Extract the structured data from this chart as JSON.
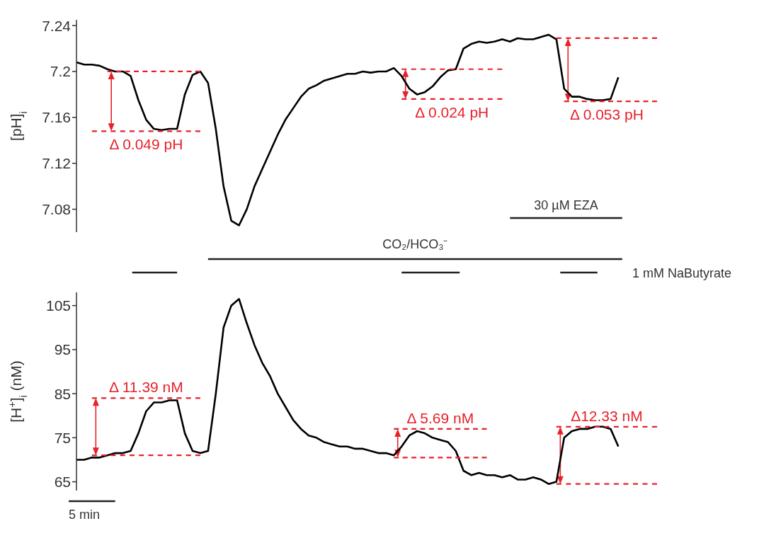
{
  "chart_data": [
    {
      "type": "line",
      "ylabel": "[pH]$_{i}$",
      "categories": [
        null,
        null,
        null,
        null,
        null,
        null,
        null,
        null,
        null,
        null,
        null,
        null,
        null,
        null,
        null,
        null,
        null,
        null,
        null,
        null,
        null,
        null,
        null,
        null,
        null,
        null,
        null,
        null,
        null,
        null,
        null,
        null,
        null,
        null,
        null,
        null,
        null,
        null,
        null,
        null,
        null,
        null,
        null,
        null,
        null,
        null,
        null,
        null,
        null,
        null,
        null,
        null,
        null,
        null,
        null,
        null,
        null,
        null,
        null,
        null,
        null,
        null,
        null,
        null,
        null,
        null,
        null,
        null,
        null,
        null,
        null,
        null,
        null,
        null,
        null,
        null
      ],
      "ylim": [
        7.06,
        7.245
      ],
      "yticks": [
        7.08,
        7.12,
        7.16,
        7.2,
        7.24
      ],
      "tick_labels": "y",
      "series": [
        {
          "color": "#000000",
          "values": [
            7.208,
            7.206,
            7.206,
            7.205,
            7.202,
            7.2,
            7.2,
            7.196,
            7.175,
            7.158,
            7.15,
            7.149,
            7.15,
            7.15,
            7.18,
            7.197,
            7.2,
            7.19,
            7.15,
            7.1,
            7.07,
            7.066,
            7.08,
            7.1,
            7.115,
            7.13,
            7.145,
            7.158,
            7.168,
            7.178,
            7.185,
            7.188,
            7.192,
            7.194,
            7.196,
            7.198,
            7.198,
            7.2,
            7.199,
            7.2,
            7.2,
            7.203,
            7.196,
            7.185,
            7.18,
            7.182,
            7.187,
            7.195,
            7.201,
            7.202,
            7.22,
            7.224,
            7.226,
            7.225,
            7.226,
            7.228,
            7.226,
            7.229,
            7.228,
            7.228,
            7.23,
            7.232,
            7.228,
            7.185,
            7.178,
            7.178,
            7.176,
            7.175,
            7.175,
            7.176,
            7.195,
            null,
            null,
            null,
            null,
            null
          ]
        },
        {
          "color": "#e8202a",
          "line_style": "dashed",
          "values": [
            null,
            null,
            null,
            null,
            7.2,
            7.2,
            7.2,
            7.2,
            7.2,
            7.2,
            7.2,
            7.2,
            7.2,
            7.2,
            7.2,
            7.2,
            7.2,
            null,
            null,
            null,
            null,
            null,
            null,
            null,
            null,
            null,
            null,
            null,
            null,
            null,
            null,
            null,
            null,
            null,
            null,
            null,
            null,
            null,
            null,
            null,
            null,
            null,
            null,
            null,
            null,
            null,
            null,
            null,
            null,
            null,
            null,
            null,
            null,
            null,
            null,
            null,
            null,
            null,
            null,
            null,
            null,
            null,
            null,
            null,
            null,
            null,
            null,
            null,
            null,
            null,
            null,
            null,
            null,
            null,
            null,
            null
          ]
        },
        {
          "color": "#e8202a",
          "line_style": "dashed",
          "values": [
            null,
            null,
            7.148,
            7.148,
            7.148,
            7.148,
            7.148,
            7.148,
            7.148,
            7.148,
            7.148,
            7.148,
            7.148,
            7.148,
            7.148,
            7.148,
            7.148,
            null,
            null,
            null,
            null,
            null,
            null,
            null,
            null,
            null,
            null,
            null,
            null,
            null,
            null,
            null,
            null,
            null,
            null,
            null,
            null,
            null,
            null,
            null,
            null,
            null,
            null,
            null,
            null,
            null,
            null,
            null,
            null,
            null,
            null,
            null,
            null,
            null,
            null,
            null,
            null,
            null,
            null,
            null,
            null,
            null,
            null,
            null,
            null,
            null,
            null,
            null,
            null,
            null,
            null,
            null,
            null,
            null,
            null,
            null
          ]
        },
        {
          "color": "#e8202a",
          "line_style": "dashed",
          "values": [
            null,
            null,
            null,
            null,
            null,
            null,
            null,
            null,
            null,
            null,
            null,
            null,
            null,
            null,
            null,
            null,
            null,
            null,
            null,
            null,
            null,
            null,
            null,
            null,
            null,
            null,
            null,
            null,
            null,
            null,
            null,
            null,
            null,
            null,
            null,
            null,
            null,
            null,
            null,
            null,
            null,
            null,
            7.202,
            7.202,
            7.202,
            7.202,
            7.202,
            7.202,
            7.202,
            7.202,
            7.202,
            7.202,
            7.202,
            7.202,
            7.202,
            7.202,
            null,
            null,
            null,
            null,
            null,
            null,
            null,
            null,
            null,
            null,
            null,
            null,
            null,
            null,
            null,
            null,
            null,
            null,
            null,
            null
          ]
        },
        {
          "color": "#e8202a",
          "line_style": "dashed",
          "values": [
            null,
            null,
            null,
            null,
            null,
            null,
            null,
            null,
            null,
            null,
            null,
            null,
            null,
            null,
            null,
            null,
            null,
            null,
            null,
            null,
            null,
            null,
            null,
            null,
            null,
            null,
            null,
            null,
            null,
            null,
            null,
            null,
            null,
            null,
            null,
            null,
            null,
            null,
            null,
            null,
            null,
            null,
            7.176,
            7.176,
            7.176,
            7.176,
            7.176,
            7.176,
            7.176,
            7.176,
            7.176,
            7.176,
            7.176,
            7.176,
            7.176,
            7.176,
            null,
            null,
            null,
            null,
            null,
            null,
            null,
            null,
            null,
            null,
            null,
            null,
            null,
            null,
            null,
            null,
            null,
            null,
            null,
            null
          ]
        },
        {
          "color": "#e8202a",
          "line_style": "dashed",
          "values": [
            null,
            null,
            null,
            null,
            null,
            null,
            null,
            null,
            null,
            null,
            null,
            null,
            null,
            null,
            null,
            null,
            null,
            null,
            null,
            null,
            null,
            null,
            null,
            null,
            null,
            null,
            null,
            null,
            null,
            null,
            null,
            null,
            null,
            null,
            null,
            null,
            null,
            null,
            null,
            null,
            null,
            null,
            null,
            null,
            null,
            null,
            null,
            null,
            null,
            null,
            null,
            null,
            null,
            null,
            null,
            null,
            null,
            null,
            null,
            null,
            null,
            null,
            7.229,
            7.229,
            7.229,
            7.229,
            7.229,
            7.229,
            7.229,
            7.229,
            7.229,
            7.229,
            7.229,
            7.229,
            7.229,
            7.229
          ]
        },
        {
          "color": "#e8202a",
          "line_style": "dashed",
          "values": [
            null,
            null,
            null,
            null,
            null,
            null,
            null,
            null,
            null,
            null,
            null,
            null,
            null,
            null,
            null,
            null,
            null,
            null,
            null,
            null,
            null,
            null,
            null,
            null,
            null,
            null,
            null,
            null,
            null,
            null,
            null,
            null,
            null,
            null,
            null,
            null,
            null,
            null,
            null,
            null,
            null,
            null,
            null,
            null,
            null,
            null,
            null,
            null,
            null,
            null,
            null,
            null,
            null,
            null,
            null,
            null,
            null,
            null,
            null,
            null,
            null,
            null,
            null,
            7.174,
            7.174,
            7.174,
            7.174,
            7.174,
            7.174,
            7.174,
            7.174,
            7.174,
            7.174,
            7.174,
            7.174,
            7.174
          ]
        }
      ],
      "annotations": [
        "Δ 0.049 pH",
        "Δ 0.024 pH",
        "Δ 0.053 pH",
        "30 µM EZA",
        "CO₂/HCO₃⁻",
        "1 mM NaButyrate"
      ]
    },
    {
      "type": "line",
      "ylabel": "[H$^{+}$]$_{i}$ (nM)",
      "categories": [
        null,
        null,
        null,
        null,
        null,
        null,
        null,
        null,
        null,
        null,
        null,
        null,
        null,
        null,
        null,
        null,
        null,
        null,
        null,
        null,
        null,
        null,
        null,
        null,
        null,
        null,
        null,
        null,
        null,
        null,
        null,
        null,
        null,
        null,
        null,
        null,
        null,
        null,
        null,
        null,
        null,
        null,
        null,
        null,
        null,
        null,
        null,
        null,
        null,
        null,
        null,
        null,
        null,
        null,
        null,
        null,
        null,
        null,
        null,
        null,
        null,
        null,
        null,
        null,
        null,
        null,
        null,
        null,
        null,
        null,
        null,
        null,
        null,
        null,
        null,
        null
      ],
      "ylim": [
        63,
        108
      ],
      "yticks": [
        65,
        75,
        85,
        95,
        105
      ],
      "tick_labels": "y",
      "series": [
        {
          "color": "#000000",
          "values": [
            70,
            70,
            70.5,
            70.5,
            71,
            71.5,
            71.5,
            72,
            76,
            81,
            83,
            83,
            83.5,
            83.5,
            76,
            72,
            71.5,
            72,
            85,
            100,
            105,
            106.5,
            101,
            96,
            92,
            89,
            85,
            82,
            79,
            77,
            75.5,
            75,
            74,
            73.5,
            73,
            73,
            72.5,
            72.5,
            72,
            71.5,
            71.5,
            71,
            73,
            75.5,
            76.5,
            76,
            75,
            74.5,
            74,
            72,
            67.5,
            66.5,
            67,
            66.5,
            66.5,
            66,
            66.5,
            65.5,
            65.5,
            66,
            65.5,
            64.5,
            65,
            75,
            76.5,
            77,
            77,
            77.5,
            77.5,
            77,
            73,
            null,
            null,
            null,
            null,
            null
          ]
        },
        {
          "color": "#e8202a",
          "line_style": "dashed",
          "values": [
            null,
            null,
            84,
            84,
            84,
            84,
            84,
            84,
            84,
            84,
            84,
            84,
            84,
            84,
            84,
            84,
            84,
            null,
            null,
            null,
            null,
            null,
            null,
            null,
            null,
            null,
            null,
            null,
            null,
            null,
            null,
            null,
            null,
            null,
            null,
            null,
            null,
            null,
            null,
            null,
            null,
            null,
            null,
            null,
            null,
            null,
            null,
            null,
            null,
            null,
            null,
            null,
            null,
            null,
            null,
            null,
            null,
            null,
            null,
            null,
            null,
            null,
            null,
            null,
            null,
            null,
            null,
            null,
            null,
            null,
            null,
            null,
            null,
            null,
            null,
            null
          ]
        },
        {
          "color": "#e8202a",
          "line_style": "dashed",
          "values": [
            null,
            null,
            71,
            71,
            71,
            71,
            71,
            71,
            71,
            71,
            71,
            71,
            71,
            71,
            71,
            71,
            71,
            null,
            null,
            null,
            null,
            null,
            null,
            null,
            null,
            null,
            null,
            null,
            null,
            null,
            null,
            null,
            null,
            null,
            null,
            null,
            null,
            null,
            null,
            null,
            null,
            null,
            null,
            null,
            null,
            null,
            null,
            null,
            null,
            null,
            null,
            null,
            null,
            null,
            null,
            null,
            null,
            null,
            null,
            null,
            null,
            null,
            null,
            null,
            null,
            null,
            null,
            null,
            null,
            null,
            null,
            null,
            null,
            null,
            null,
            null
          ]
        },
        {
          "color": "#e8202a",
          "line_style": "dashed",
          "values": [
            null,
            null,
            null,
            null,
            null,
            null,
            null,
            null,
            null,
            null,
            null,
            null,
            null,
            null,
            null,
            null,
            null,
            null,
            null,
            null,
            null,
            null,
            null,
            null,
            null,
            null,
            null,
            null,
            null,
            null,
            null,
            null,
            null,
            null,
            null,
            null,
            null,
            null,
            null,
            null,
            null,
            77,
            77,
            77,
            77,
            77,
            77,
            77,
            77,
            77,
            77,
            77,
            77,
            77,
            null,
            null,
            null,
            null,
            null,
            null,
            null,
            null,
            null,
            null,
            null,
            null,
            null,
            null,
            null,
            null,
            null,
            null,
            null,
            null,
            null,
            null
          ]
        },
        {
          "color": "#e8202a",
          "line_style": "dashed",
          "values": [
            null,
            null,
            null,
            null,
            null,
            null,
            null,
            null,
            null,
            null,
            null,
            null,
            null,
            null,
            null,
            null,
            null,
            null,
            null,
            null,
            null,
            null,
            null,
            null,
            null,
            null,
            null,
            null,
            null,
            null,
            null,
            null,
            null,
            null,
            null,
            null,
            null,
            null,
            null,
            null,
            null,
            70.5,
            70.5,
            70.5,
            70.5,
            70.5,
            70.5,
            70.5,
            70.5,
            70.5,
            70.5,
            70.5,
            70.5,
            70.5,
            null,
            null,
            null,
            null,
            null,
            null,
            null,
            null,
            null,
            null,
            null,
            null,
            null,
            null,
            null,
            null,
            null,
            null,
            null,
            null,
            null,
            null
          ]
        },
        {
          "color": "#e8202a",
          "line_style": "dashed",
          "values": [
            null,
            null,
            null,
            null,
            null,
            null,
            null,
            null,
            null,
            null,
            null,
            null,
            null,
            null,
            null,
            null,
            null,
            null,
            null,
            null,
            null,
            null,
            null,
            null,
            null,
            null,
            null,
            null,
            null,
            null,
            null,
            null,
            null,
            null,
            null,
            null,
            null,
            null,
            null,
            null,
            null,
            null,
            null,
            null,
            null,
            null,
            null,
            null,
            null,
            null,
            null,
            null,
            null,
            null,
            null,
            null,
            null,
            null,
            null,
            null,
            null,
            null,
            77.5,
            77.5,
            77.5,
            77.5,
            77.5,
            77.5,
            77.5,
            77.5,
            77.5,
            77.5,
            77.5,
            77.5,
            77.5,
            77.5
          ]
        },
        {
          "color": "#e8202a",
          "line_style": "dashed",
          "values": [
            null,
            null,
            null,
            null,
            null,
            null,
            null,
            null,
            null,
            null,
            null,
            null,
            null,
            null,
            null,
            null,
            null,
            null,
            null,
            null,
            null,
            null,
            null,
            null,
            null,
            null,
            null,
            null,
            null,
            null,
            null,
            null,
            null,
            null,
            null,
            null,
            null,
            null,
            null,
            null,
            null,
            null,
            null,
            null,
            null,
            null,
            null,
            null,
            null,
            null,
            null,
            null,
            null,
            null,
            null,
            null,
            null,
            null,
            null,
            null,
            null,
            null,
            64.5,
            64.5,
            64.5,
            64.5,
            64.5,
            64.5,
            64.5,
            64.5,
            64.5,
            64.5,
            64.5,
            64.5,
            64.5,
            64.5
          ]
        }
      ],
      "annotations": [
        "Δ 11.39 nM",
        "Δ 5.69 nM",
        "Δ12.33 nM",
        "5 min"
      ]
    }
  ]
}
